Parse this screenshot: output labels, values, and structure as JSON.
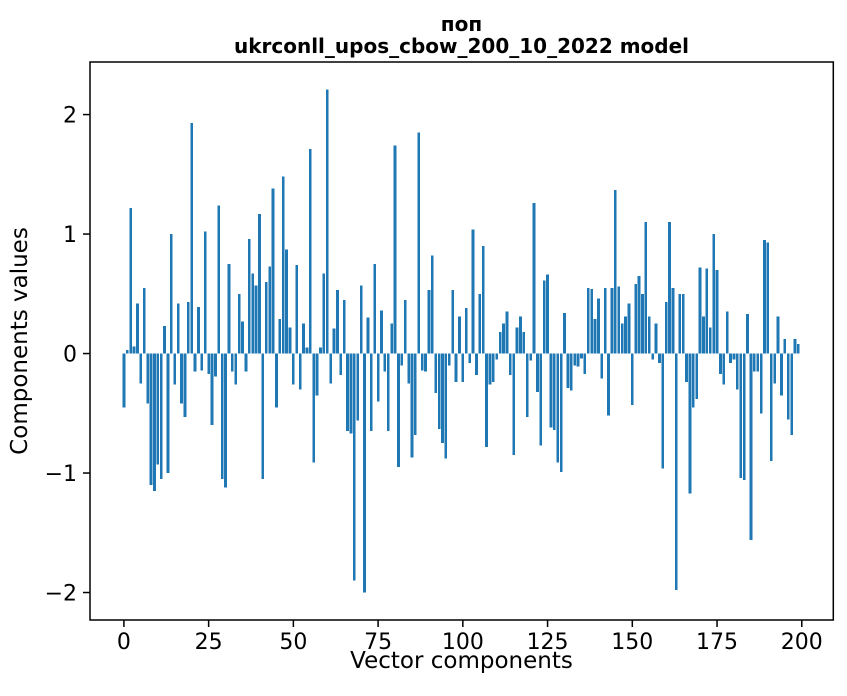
{
  "figure": {
    "background": "#ffffff",
    "spine_color": "#000000",
    "text_color": "#000000"
  },
  "chart_data": {
    "type": "bar",
    "title": "поп",
    "subtitle": "ukrconll_upos_cbow_200_10_2022 model",
    "xlabel": "Vector components",
    "ylabel": "Components values",
    "bar_color": "#1f77b4",
    "n_components": 200,
    "grid": false,
    "legend": null,
    "xlim": [
      -10.0,
      209.3
    ],
    "ylim": [
      -2.23,
      2.44
    ],
    "x_ticks": [
      0,
      25,
      50,
      75,
      100,
      125,
      150,
      175,
      200
    ],
    "y_ticks": [
      -2,
      -1,
      0,
      1,
      2
    ],
    "values": [
      -0.45,
      0.03,
      1.22,
      0.06,
      0.42,
      -0.25,
      0.55,
      -0.42,
      -1.1,
      -1.15,
      -0.93,
      -1.05,
      0.23,
      -1.0,
      1.0,
      -0.26,
      0.42,
      -0.42,
      -0.53,
      0.43,
      1.93,
      -0.15,
      0.39,
      -0.14,
      1.02,
      -0.17,
      -0.6,
      -0.19,
      1.24,
      -1.05,
      -1.12,
      0.75,
      -0.15,
      -0.26,
      0.5,
      0.27,
      -0.15,
      0.96,
      0.67,
      0.57,
      1.17,
      -1.05,
      0.6,
      0.73,
      1.38,
      -0.45,
      0.29,
      1.48,
      0.87,
      0.22,
      -0.26,
      0.74,
      -0.3,
      0.25,
      0.05,
      1.71,
      -0.91,
      -0.35,
      0.05,
      0.67,
      2.21,
      -0.25,
      0.21,
      0.53,
      -0.18,
      0.45,
      -0.65,
      -0.67,
      -1.9,
      -0.56,
      0.57,
      -2.0,
      0.3,
      -0.65,
      0.75,
      -0.4,
      0.36,
      -0.15,
      -0.65,
      0.25,
      1.74,
      -0.95,
      -0.1,
      0.45,
      -0.25,
      -0.87,
      -0.68,
      1.85,
      -0.14,
      -0.15,
      0.53,
      0.82,
      -0.33,
      -0.63,
      -0.75,
      -0.88,
      -0.1,
      0.53,
      -0.24,
      0.31,
      -0.24,
      0.38,
      -0.08,
      1.04,
      -0.18,
      0.5,
      0.9,
      -0.78,
      -0.26,
      -0.24,
      -0.05,
      0.18,
      0.25,
      0.35,
      -0.18,
      -0.85,
      0.22,
      0.31,
      0.18,
      -0.53,
      -0.06,
      1.26,
      -0.32,
      -0.77,
      0.61,
      0.66,
      -0.62,
      -0.64,
      -0.91,
      -0.99,
      0.34,
      -0.29,
      -0.31,
      -0.1,
      -0.11,
      -0.04,
      -0.17,
      0.55,
      0.54,
      0.29,
      0.46,
      -0.21,
      0.55,
      -0.52,
      0.55,
      1.37,
      0.56,
      0.25,
      0.31,
      0.42,
      -0.43,
      0.58,
      0.65,
      0.5,
      1.1,
      0.31,
      -0.05,
      0.25,
      -0.08,
      -0.96,
      0.43,
      1.1,
      0.55,
      -1.98,
      0.5,
      0.5,
      -0.24,
      -1.17,
      -0.45,
      -0.38,
      0.72,
      0.31,
      0.71,
      0.22,
      1.0,
      0.7,
      -0.17,
      -0.26,
      0.35,
      -0.08,
      -0.05,
      -0.3,
      -1.04,
      -1.06,
      0.33,
      -1.56,
      -0.15,
      -0.15,
      -0.5,
      0.95,
      0.93,
      -0.9,
      -0.25,
      0.31,
      -0.35,
      0.12,
      -0.55,
      -0.68,
      0.12,
      0.08
    ]
  }
}
